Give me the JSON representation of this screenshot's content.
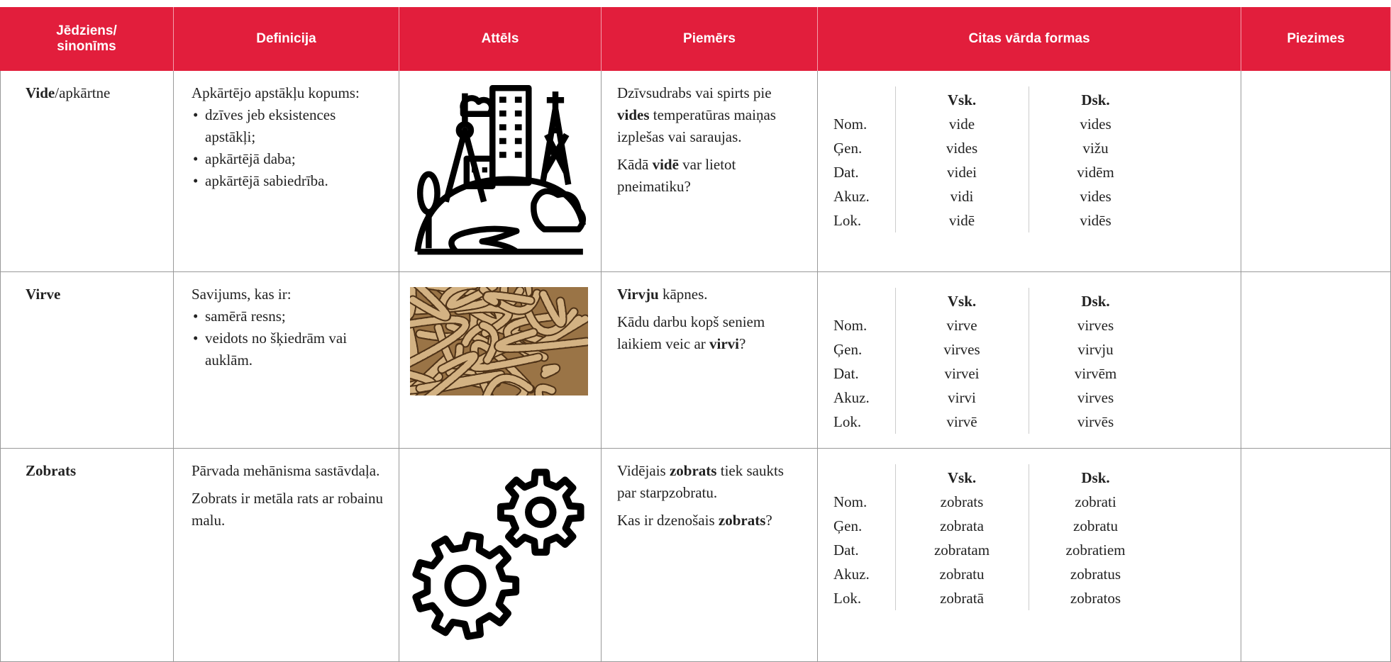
{
  "header": {
    "columns": [
      "Jēdziens/ sinonīms",
      "Definicija",
      "Attēls",
      "Piemērs",
      "Citas vārda formas",
      "Piezimes"
    ]
  },
  "rows": [
    {
      "term": [
        {
          "text": "Vide",
          "bold": true
        },
        {
          "text": "/apkārtne",
          "bold": false
        }
      ],
      "definition": {
        "paragraphs": [
          "Apkārtējo apstākļu kopums:"
        ],
        "bullets": [
          "dzīves jeb eksistences apstākļi;",
          "apkārtējā daba;",
          "apkārtējā sabiedrība."
        ]
      },
      "example": [
        [
          {
            "text": "Dzīvsudrabs vai spirts pie ",
            "bold": false
          },
          {
            "text": "vides",
            "bold": true
          },
          {
            "text": " temperatūras maiņas izplešas vai saraujas.",
            "bold": false
          }
        ],
        [
          {
            "text": "Kādā ",
            "bold": false
          },
          {
            "text": "vidē",
            "bold": true
          },
          {
            "text": " var lietot pneimatiku?",
            "bold": false
          }
        ]
      ],
      "forms": {
        "cases": [
          "Nom.",
          "Ģen.",
          "Dat.",
          "Akuz.",
          "Lok."
        ],
        "singular_header": "Vsk.",
        "plural_header": "Dsk.",
        "singular": [
          "vide",
          "vides",
          "videi",
          "vidi",
          "vidē"
        ],
        "plural": [
          "vides",
          "vižu",
          "vidēm",
          "vides",
          "vidēs"
        ]
      }
    },
    {
      "term": [
        {
          "text": "Virve",
          "bold": true
        }
      ],
      "definition": {
        "paragraphs": [
          "Savijums, kas ir:"
        ],
        "bullets": [
          "samērā resns;",
          "veidots no šķiedrām vai auklām."
        ]
      },
      "example": [
        [
          {
            "text": "Virvju",
            "bold": true
          },
          {
            "text": " kāpnes.",
            "bold": false
          }
        ],
        [
          {
            "text": "Kādu darbu kopš seniem laikiem veic ar ",
            "bold": false
          },
          {
            "text": "virvi",
            "bold": true
          },
          {
            "text": "?",
            "bold": false
          }
        ]
      ],
      "forms": {
        "cases": [
          "Nom.",
          "Ģen.",
          "Dat.",
          "Akuz.",
          "Lok."
        ],
        "singular_header": "Vsk.",
        "plural_header": "Dsk.",
        "singular": [
          "virve",
          "virves",
          "virvei",
          "virvi",
          "virvē"
        ],
        "plural": [
          "virves",
          "virvju",
          "virvēm",
          "virves",
          "virvēs"
        ]
      }
    },
    {
      "term": [
        {
          "text": "Zobrats",
          "bold": true
        }
      ],
      "definition": {
        "paragraphs": [
          "Pārvada mehānisma sastāvdaļa.",
          "Zobrats ir metāla rats ar robainu malu."
        ]
      },
      "example": [
        [
          {
            "text": "Vidējais ",
            "bold": false
          },
          {
            "text": "zobrats",
            "bold": true
          },
          {
            "text": " tiek saukts par starpzobratu.",
            "bold": false
          }
        ],
        [
          {
            "text": "Kas ir dzenošais ",
            "bold": false
          },
          {
            "text": "zobrats",
            "bold": true
          },
          {
            "text": "?",
            "bold": false
          }
        ]
      ],
      "forms": {
        "cases": [
          "Nom.",
          "Ģen.",
          "Dat.",
          "Akuz.",
          "Lok."
        ],
        "singular_header": "Vsk.",
        "plural_header": "Dsk.",
        "singular": [
          "zobrats",
          "zobrata",
          "zobratam",
          "zobratu",
          "zobratā"
        ],
        "plural": [
          "zobrati",
          "zobratu",
          "zobratiem",
          "zobratus",
          "zobratos"
        ]
      }
    }
  ]
}
